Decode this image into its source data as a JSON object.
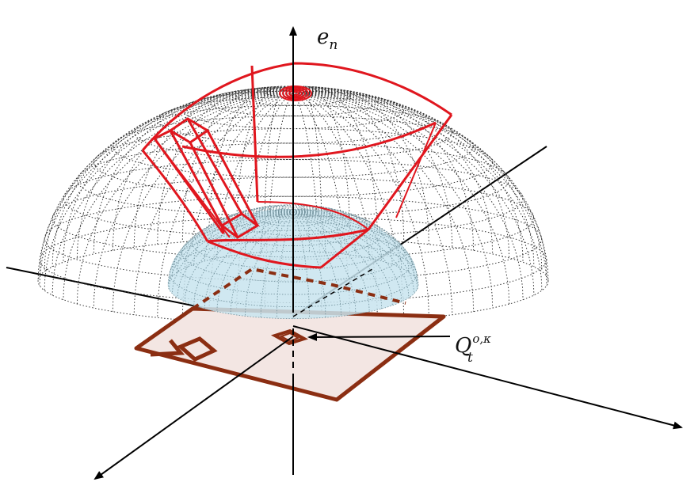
{
  "labels": {
    "vertical_axis": {
      "base": "e",
      "sub": "n"
    },
    "cell": {
      "base": "Q",
      "sub": "t",
      "sup": "o,κ"
    }
  },
  "colors": {
    "axis": "#000000",
    "outer_mesh": "#333333",
    "inner_dome_fill": "#c8e4ee",
    "inner_dome_mesh": "#6f8f9a",
    "sector_red": "#e0161e",
    "plane_fill": "#f3e6e3",
    "plane_stroke": "#8b2e12"
  },
  "icons": {
    "arrowheads": "arrow-head-icon"
  }
}
